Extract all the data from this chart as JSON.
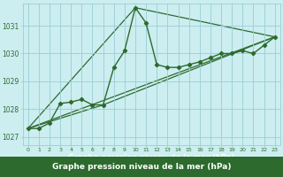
{
  "title": "Graphe pression niveau de la mer (hPa)",
  "bg_color": "#cceef0",
  "grid_color": "#99cdd4",
  "line_color": "#2d6a2d",
  "xlabel_bg": "#3a7a3a",
  "xlabel_fg": "#ffffff",
  "xlim": [
    -0.5,
    23.5
  ],
  "ylim": [
    1026.7,
    1031.8
  ],
  "yticks": [
    1027,
    1028,
    1029,
    1030,
    1031
  ],
  "xticks": [
    0,
    1,
    2,
    3,
    4,
    5,
    6,
    7,
    8,
    9,
    10,
    11,
    12,
    13,
    14,
    15,
    16,
    17,
    18,
    19,
    20,
    21,
    22,
    23
  ],
  "main_series": {
    "x": [
      0,
      1,
      2,
      3,
      4,
      5,
      6,
      7,
      8,
      9,
      10,
      11,
      12,
      13,
      14,
      15,
      16,
      17,
      18,
      19,
      20,
      21,
      22,
      23
    ],
    "y": [
      1027.3,
      1027.3,
      1027.5,
      1028.2,
      1028.25,
      1028.35,
      1028.15,
      1028.15,
      1029.5,
      1030.1,
      1031.65,
      1031.1,
      1029.6,
      1029.5,
      1029.5,
      1029.6,
      1029.7,
      1029.85,
      1030.0,
      1030.0,
      1030.1,
      1030.0,
      1030.3,
      1030.6
    ]
  },
  "line1": {
    "x": [
      0,
      23
    ],
    "y": [
      1027.3,
      1030.6
    ]
  },
  "line2": {
    "x": [
      0,
      7,
      23
    ],
    "y": [
      1027.3,
      1028.15,
      1030.6
    ]
  },
  "line3": {
    "x": [
      0,
      10,
      23
    ],
    "y": [
      1027.3,
      1031.65,
      1030.6
    ]
  }
}
